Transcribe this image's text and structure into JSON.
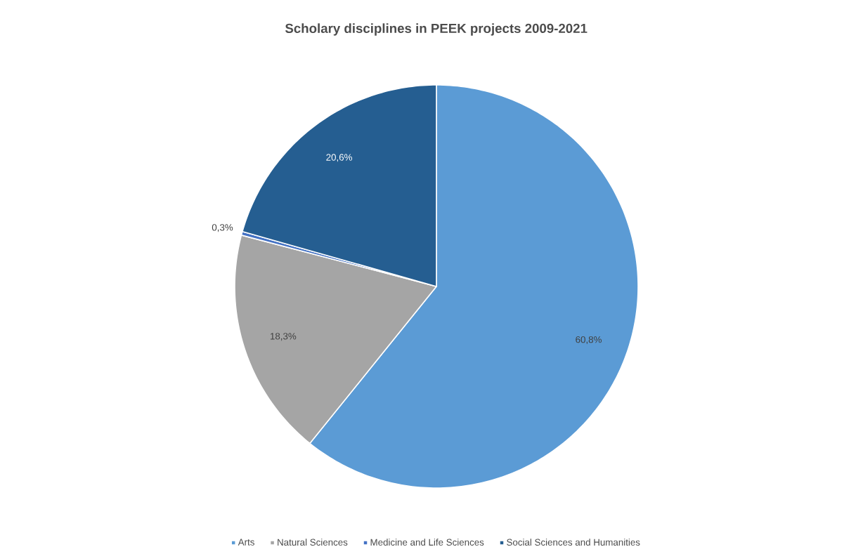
{
  "chart_data": {
    "type": "pie",
    "title": "Scholary disciplines in PEEK projects 2009-2021",
    "categories": [
      "Arts",
      "Natural Sciences",
      "Medicine and Life Sciences",
      "Social Sciences and Humanities"
    ],
    "values": [
      60.8,
      18.3,
      0.3,
      20.6
    ],
    "colors": [
      "#5b9bd5",
      "#a5a5a5",
      "#4472c4",
      "#255e91"
    ],
    "value_labels": [
      "60,8%",
      "18,3%",
      "0,3%",
      "20,6%"
    ],
    "legend": "bottom"
  }
}
